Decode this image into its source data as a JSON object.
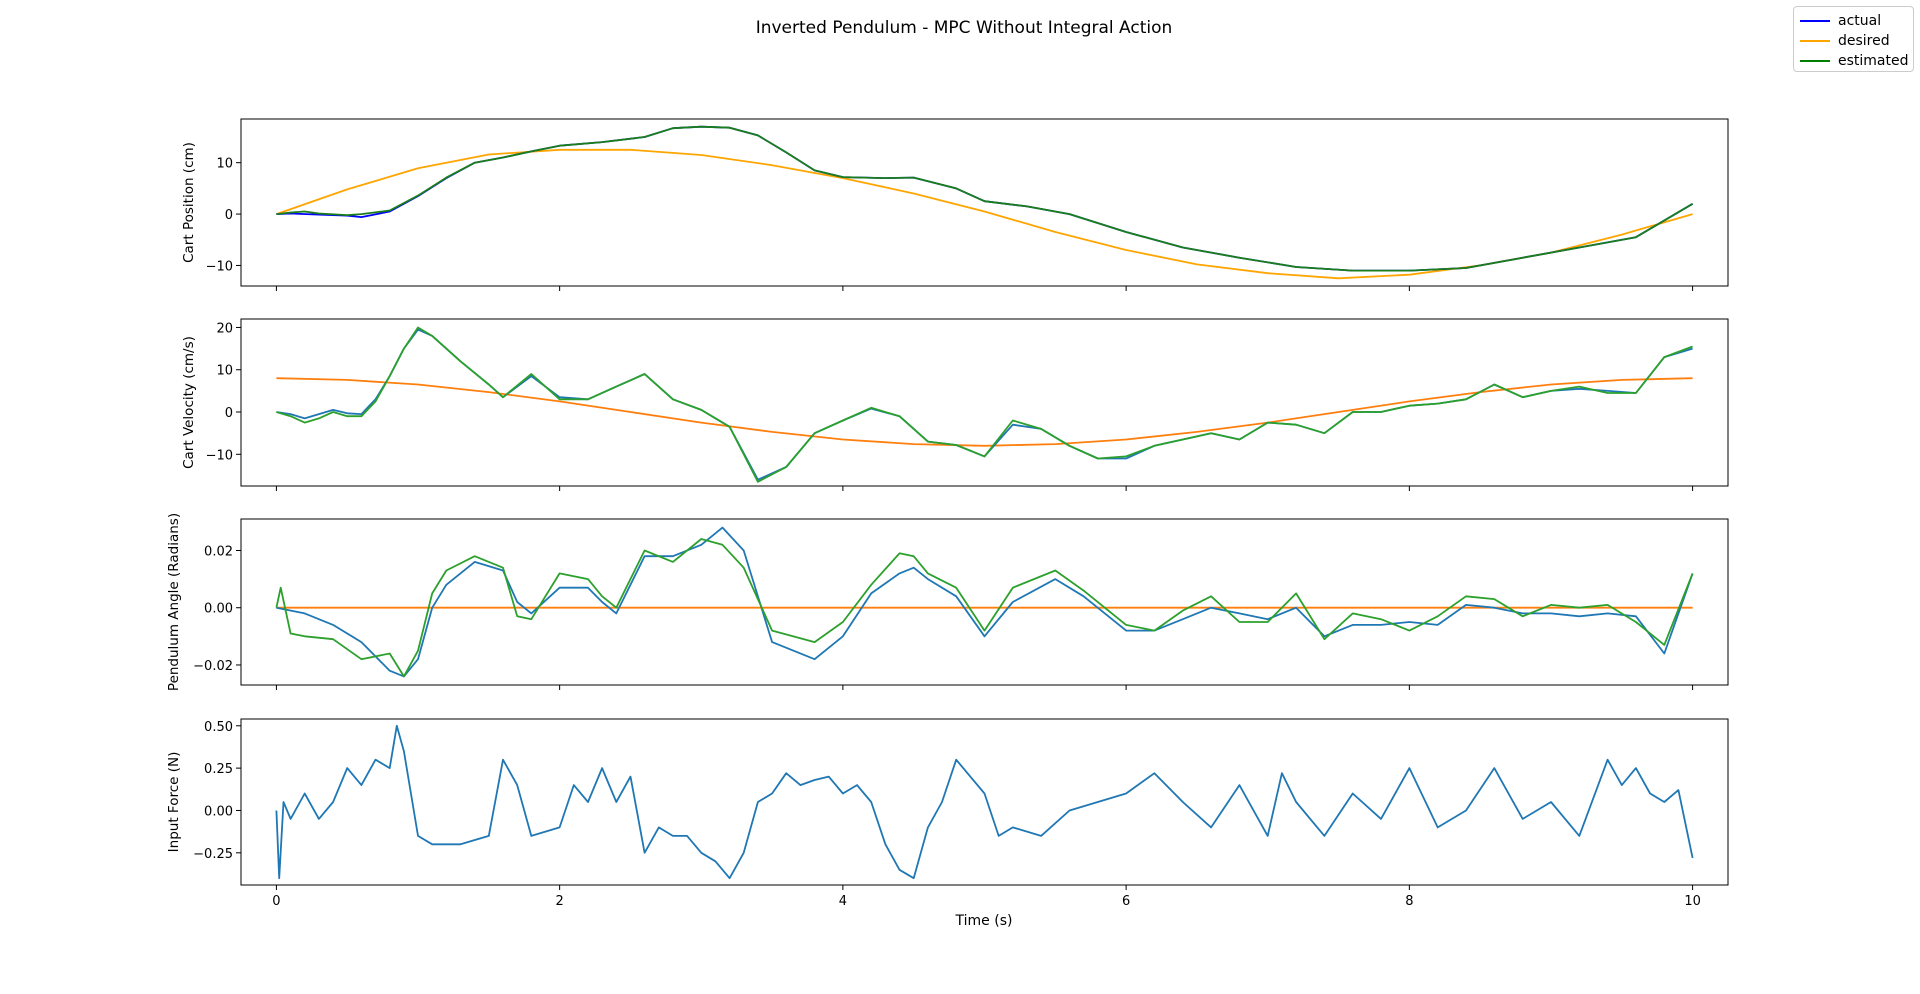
{
  "chart_data": {
    "type": "line",
    "title": "Inverted Pendulum - MPC Without Integral Action",
    "xlabel": "Time (s)",
    "xlim": [
      -0.25,
      10.25
    ],
    "xticks": [
      0,
      2,
      4,
      6,
      8,
      10
    ],
    "xtick_labels": [
      "0",
      "2",
      "4",
      "6",
      "8",
      "10"
    ],
    "legend": {
      "placement": "top-right",
      "entries": [
        {
          "label": "actual",
          "color": "#0000ff"
        },
        {
          "label": "desired",
          "color": "#ffa500"
        },
        {
          "label": "estimated",
          "color": "#008000"
        }
      ]
    },
    "panels": [
      {
        "ylabel": "Cart Position (cm)",
        "ylim": [
          -14,
          18.5
        ],
        "yticks": [
          -10,
          0,
          10
        ],
        "ytick_labels": [
          "−10",
          "0",
          "10"
        ],
        "series": [
          {
            "label_ref": "desired",
            "color": "#ffa500",
            "x": [
              0,
              0.5,
              1,
              1.5,
              2,
              2.5,
              3,
              3.5,
              4,
              4.5,
              5,
              5.5,
              6,
              6.5,
              7,
              7.5,
              8,
              8.5,
              9,
              9.5,
              10
            ],
            "y": [
              0,
              4.8,
              8.9,
              11.6,
              12.5,
              12.5,
              11.5,
              9.5,
              7.0,
              4.0,
              0.5,
              -3.5,
              -7.0,
              -9.8,
              -11.5,
              -12.5,
              -11.8,
              -10.0,
              -7.5,
              -4.0,
              0
            ]
          },
          {
            "label_ref": "actual",
            "color": "#0000ff",
            "x": [
              0,
              0.1,
              0.3,
              0.5,
              0.6,
              0.8,
              1,
              1.2,
              1.4,
              1.6,
              1.8,
              2,
              2.3,
              2.6,
              2.8,
              3,
              3.2,
              3.4,
              3.6,
              3.8,
              4,
              4.3,
              4.5,
              4.8,
              5,
              5.3,
              5.6,
              6,
              6.4,
              6.8,
              7.2,
              7.6,
              8,
              8.4,
              8.8,
              9.2,
              9.6,
              10
            ],
            "y": [
              0,
              0.1,
              -0.1,
              -0.3,
              -0.6,
              0.5,
              3.5,
              7,
              10,
              11,
              12.2,
              13.3,
              14,
              15,
              16.7,
              17,
              16.8,
              15.3,
              12,
              8.5,
              7.2,
              7.0,
              7.1,
              5,
              2.5,
              1.5,
              0,
              -3.5,
              -6.5,
              -8.5,
              -10.3,
              -11,
              -11,
              -10.5,
              -8.5,
              -6.5,
              -4.5,
              2
            ]
          },
          {
            "label_ref": "estimated",
            "color": "#1a7f1a",
            "x": [
              0,
              0.1,
              0.2,
              0.3,
              0.5,
              0.6,
              0.8,
              1,
              1.2,
              1.4,
              1.6,
              1.8,
              2,
              2.3,
              2.6,
              2.8,
              3,
              3.2,
              3.4,
              3.6,
              3.8,
              4,
              4.3,
              4.5,
              4.8,
              5,
              5.3,
              5.6,
              6,
              6.4,
              6.8,
              7.2,
              7.6,
              8,
              8.4,
              8.8,
              9.2,
              9.6,
              10
            ],
            "y": [
              0,
              0.3,
              0.5,
              0.1,
              -0.2,
              0,
              0.7,
              3.6,
              7.1,
              10,
              11,
              12.2,
              13.3,
              14,
              15,
              16.7,
              17,
              16.8,
              15.3,
              12,
              8.5,
              7.2,
              7.0,
              7.1,
              5,
              2.5,
              1.5,
              0,
              -3.5,
              -6.5,
              -8.5,
              -10.3,
              -11,
              -11,
              -10.5,
              -8.5,
              -6.5,
              -4.5,
              2
            ]
          }
        ]
      },
      {
        "ylabel": "Cart Velocity (cm/s)",
        "ylim": [
          -17.5,
          22
        ],
        "yticks": [
          -10,
          0,
          10,
          20
        ],
        "ytick_labels": [
          "−10",
          "0",
          "10",
          "20"
        ],
        "series": [
          {
            "label_ref": "desired",
            "color": "#ff7f0e",
            "x": [
              0,
              0.5,
              1,
              1.5,
              2,
              2.5,
              3,
              3.5,
              4,
              4.5,
              5,
              5.5,
              6,
              6.5,
              7,
              7.5,
              8,
              8.5,
              9,
              9.5,
              10
            ],
            "y": [
              8,
              7.6,
              6.5,
              4.7,
              2.5,
              0,
              -2.5,
              -4.7,
              -6.5,
              -7.6,
              -8,
              -7.6,
              -6.5,
              -4.7,
              -2.5,
              0,
              2.5,
              4.7,
              6.5,
              7.6,
              8
            ]
          },
          {
            "label_ref": "actual",
            "color": "#1f77b4",
            "x": [
              0,
              0.1,
              0.2,
              0.3,
              0.4,
              0.5,
              0.6,
              0.7,
              0.8,
              0.9,
              1,
              1.1,
              1.3,
              1.5,
              1.6,
              1.8,
              2,
              2.2,
              2.4,
              2.6,
              2.8,
              3,
              3.2,
              3.4,
              3.6,
              3.8,
              4,
              4.2,
              4.4,
              4.6,
              4.8,
              5,
              5.2,
              5.4,
              5.6,
              5.8,
              6,
              6.2,
              6.4,
              6.6,
              6.8,
              7,
              7.2,
              7.4,
              7.6,
              7.8,
              8,
              8.2,
              8.4,
              8.6,
              8.8,
              9,
              9.2,
              9.4,
              9.6,
              9.8,
              10
            ],
            "y": [
              0,
              -0.5,
              -1.5,
              -0.5,
              0.5,
              -0.3,
              -0.5,
              3,
              8.5,
              15,
              19.5,
              18,
              12,
              6.5,
              3.5,
              8.5,
              3.5,
              3,
              6,
              9,
              3,
              0.5,
              -3.5,
              -16,
              -13,
              -5,
              -2,
              0.8,
              -1,
              -7,
              -7.8,
              -10.5,
              -3,
              -4,
              -8,
              -11,
              -11,
              -8,
              -6.5,
              -5,
              -6.5,
              -2.5,
              -3,
              -5,
              0,
              0,
              1.5,
              2,
              3,
              6.5,
              3.5,
              5,
              5.5,
              5,
              4.5,
              13,
              15
            ]
          },
          {
            "label_ref": "estimated",
            "color": "#2ca02c",
            "x": [
              0,
              0.1,
              0.2,
              0.3,
              0.4,
              0.5,
              0.6,
              0.7,
              0.8,
              0.9,
              1,
              1.1,
              1.3,
              1.5,
              1.6,
              1.8,
              2,
              2.2,
              2.4,
              2.6,
              2.8,
              3,
              3.2,
              3.4,
              3.6,
              3.8,
              4,
              4.2,
              4.4,
              4.6,
              4.8,
              5,
              5.2,
              5.4,
              5.6,
              5.8,
              6,
              6.2,
              6.4,
              6.6,
              6.8,
              7,
              7.2,
              7.4,
              7.6,
              7.8,
              8,
              8.2,
              8.4,
              8.6,
              8.8,
              9,
              9.2,
              9.4,
              9.6,
              9.8,
              10
            ],
            "y": [
              0,
              -1,
              -2.5,
              -1.5,
              0,
              -1,
              -1,
              2.5,
              8.5,
              15,
              20,
              18,
              12,
              6.5,
              3.5,
              9,
              3,
              3,
              6,
              9,
              3,
              0.5,
              -3.5,
              -16.5,
              -13,
              -5,
              -2,
              1,
              -1,
              -7,
              -7.8,
              -10.5,
              -2,
              -4,
              -8,
              -11,
              -10.5,
              -8,
              -6.5,
              -5,
              -6.5,
              -2.5,
              -3,
              -5,
              0,
              0,
              1.5,
              2,
              3,
              6.5,
              3.5,
              5,
              6,
              4.5,
              4.5,
              13,
              15.5
            ]
          }
        ]
      },
      {
        "ylabel": "Pendulum Angle (Radians)",
        "ylim": [
          -0.027,
          0.031
        ],
        "yticks": [
          -0.02,
          0,
          0.02
        ],
        "ytick_labels": [
          "−0.02",
          "0.00",
          "0.02"
        ],
        "series": [
          {
            "label_ref": "desired",
            "color": "#ff7f0e",
            "x": [
              0,
              10
            ],
            "y": [
              0,
              0
            ]
          },
          {
            "label_ref": "actual",
            "color": "#1f77b4",
            "x": [
              0,
              0.2,
              0.4,
              0.6,
              0.8,
              0.9,
              1,
              1.1,
              1.2,
              1.4,
              1.6,
              1.7,
              1.8,
              2,
              2.2,
              2.3,
              2.4,
              2.6,
              2.8,
              3,
              3.15,
              3.3,
              3.5,
              3.8,
              4,
              4.2,
              4.4,
              4.5,
              4.6,
              4.8,
              5,
              5.2,
              5.5,
              5.7,
              6,
              6.2,
              6.4,
              6.6,
              6.8,
              7,
              7.2,
              7.4,
              7.6,
              7.8,
              8,
              8.2,
              8.4,
              8.6,
              8.8,
              9,
              9.2,
              9.4,
              9.6,
              9.8,
              10
            ],
            "y": [
              0,
              -0.002,
              -0.006,
              -0.012,
              -0.022,
              -0.024,
              -0.018,
              0,
              0.008,
              0.016,
              0.013,
              0.002,
              -0.002,
              0.007,
              0.007,
              0.002,
              -0.002,
              0.018,
              0.018,
              0.022,
              0.028,
              0.02,
              -0.012,
              -0.018,
              -0.01,
              0.005,
              0.012,
              0.014,
              0.01,
              0.004,
              -0.01,
              0.002,
              0.01,
              0.004,
              -0.008,
              -0.008,
              -0.004,
              0,
              -0.002,
              -0.004,
              0,
              -0.01,
              -0.006,
              -0.006,
              -0.005,
              -0.006,
              0.001,
              0,
              -0.002,
              -0.002,
              -0.003,
              -0.002,
              -0.003,
              -0.016,
              0.012
            ]
          },
          {
            "label_ref": "estimated",
            "color": "#2ca02c",
            "x": [
              0,
              0.03,
              0.1,
              0.2,
              0.4,
              0.6,
              0.8,
              0.9,
              1,
              1.1,
              1.2,
              1.4,
              1.6,
              1.7,
              1.8,
              2,
              2.2,
              2.3,
              2.4,
              2.6,
              2.8,
              3,
              3.15,
              3.3,
              3.5,
              3.8,
              4,
              4.2,
              4.4,
              4.5,
              4.6,
              4.8,
              5,
              5.2,
              5.5,
              5.7,
              6,
              6.2,
              6.4,
              6.6,
              6.8,
              7,
              7.2,
              7.4,
              7.6,
              7.8,
              8,
              8.2,
              8.4,
              8.6,
              8.8,
              9,
              9.2,
              9.4,
              9.6,
              9.8,
              10
            ],
            "y": [
              0,
              0.007,
              -0.009,
              -0.01,
              -0.011,
              -0.018,
              -0.016,
              -0.024,
              -0.015,
              0.005,
              0.013,
              0.018,
              0.014,
              -0.003,
              -0.004,
              0.012,
              0.01,
              0.004,
              0,
              0.02,
              0.016,
              0.024,
              0.022,
              0.014,
              -0.008,
              -0.012,
              -0.005,
              0.008,
              0.019,
              0.018,
              0.012,
              0.007,
              -0.008,
              0.007,
              0.013,
              0.006,
              -0.006,
              -0.008,
              -0.001,
              0.004,
              -0.005,
              -0.005,
              0.005,
              -0.011,
              -0.002,
              -0.004,
              -0.008,
              -0.003,
              0.004,
              0.003,
              -0.003,
              0.001,
              0,
              0.001,
              -0.005,
              -0.013,
              0.012
            ]
          }
        ]
      },
      {
        "ylabel": "Input Force (N)",
        "ylim": [
          -0.44,
          0.54
        ],
        "yticks": [
          -0.25,
          0,
          0.25,
          0.5
        ],
        "ytick_labels": [
          "−0.25",
          "0.00",
          "0.25",
          "0.50"
        ],
        "series": [
          {
            "label_ref": "actual",
            "color": "#1f77b4",
            "x": [
              0,
              0.02,
              0.05,
              0.1,
              0.2,
              0.3,
              0.4,
              0.5,
              0.6,
              0.7,
              0.8,
              0.85,
              0.9,
              1,
              1.1,
              1.3,
              1.5,
              1.6,
              1.7,
              1.8,
              2,
              2.1,
              2.2,
              2.3,
              2.4,
              2.5,
              2.6,
              2.7,
              2.8,
              2.9,
              3,
              3.1,
              3.2,
              3.3,
              3.4,
              3.5,
              3.6,
              3.7,
              3.8,
              3.9,
              4,
              4.1,
              4.2,
              4.3,
              4.4,
              4.5,
              4.6,
              4.7,
              4.8,
              4.9,
              5,
              5.1,
              5.2,
              5.4,
              5.6,
              5.8,
              6,
              6.2,
              6.4,
              6.6,
              6.8,
              7,
              7.1,
              7.2,
              7.4,
              7.6,
              7.8,
              8,
              8.2,
              8.4,
              8.6,
              8.8,
              9,
              9.2,
              9.4,
              9.5,
              9.6,
              9.7,
              9.8,
              9.9,
              10
            ],
            "y": [
              0,
              -0.4,
              0.05,
              -0.05,
              0.1,
              -0.05,
              0.05,
              0.25,
              0.15,
              0.3,
              0.25,
              0.5,
              0.35,
              -0.15,
              -0.2,
              -0.2,
              -0.15,
              0.3,
              0.15,
              -0.15,
              -0.1,
              0.15,
              0.05,
              0.25,
              0.05,
              0.2,
              -0.25,
              -0.1,
              -0.15,
              -0.15,
              -0.25,
              -0.3,
              -0.4,
              -0.25,
              0.05,
              0.1,
              0.22,
              0.15,
              0.18,
              0.2,
              0.1,
              0.15,
              0.05,
              -0.2,
              -0.35,
              -0.4,
              -0.1,
              0.05,
              0.3,
              0.2,
              0.1,
              -0.15,
              -0.1,
              -0.15,
              0,
              0.05,
              0.1,
              0.22,
              0.05,
              -0.1,
              0.15,
              -0.15,
              0.22,
              0.05,
              -0.15,
              0.1,
              -0.05,
              0.25,
              -0.1,
              0,
              0.25,
              -0.05,
              0.05,
              -0.15,
              0.3,
              0.15,
              0.25,
              0.1,
              0.05,
              0.12,
              -0.28
            ]
          }
        ]
      }
    ]
  }
}
